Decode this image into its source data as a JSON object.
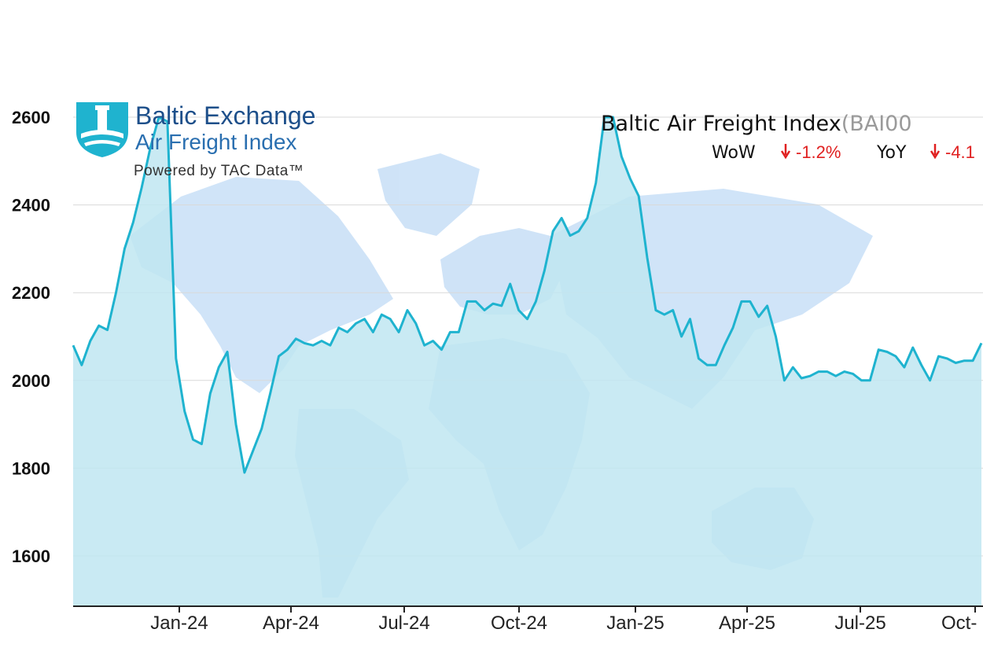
{
  "colors": {
    "line": "#1fb3cf",
    "area": "#c0e6f1",
    "grid": "#d9d9d9",
    "map_land": "#a9cdf2",
    "down_arrow": "#e02020",
    "brand_blue": "#1d4f8a"
  },
  "logo": {
    "name": "Baltic Exchange",
    "product": "Air Freight Index",
    "powered_by": "Powered by TAC Data™",
    "icon": "baltic-exchange-lighthouse-icon"
  },
  "header": {
    "title": "Baltic Air Freight Index",
    "code": "(BAI00",
    "wow_label": "WoW",
    "wow_value": "-1.2%",
    "yoy_label": "YoY",
    "yoy_value": "-4.1",
    "down_icon": "arrow-down-icon"
  },
  "chart_data": {
    "type": "area",
    "title": "Baltic Air Freight Index(BAI00",
    "xlabel": "",
    "ylabel": "",
    "ylim": [
      1490,
      2600
    ],
    "yticks": [
      1600,
      1800,
      2000,
      2200,
      2400,
      2600
    ],
    "xticks": [
      "Jan-24",
      "Apr-24",
      "Jul-24",
      "Oct-24",
      "Jan-25",
      "Apr-25",
      "Jul-25",
      "Oct-"
    ],
    "x_unit": "weeks",
    "grid": true,
    "background": "world-map",
    "series": [
      {
        "values": [
          2080,
          2035,
          2090,
          2125,
          2115,
          2200,
          2300,
          2360,
          2440,
          2530,
          2600,
          2590,
          2050,
          1930,
          1865,
          1855,
          1970,
          2030,
          2065,
          1900,
          1790,
          1840,
          1890,
          1970,
          2055,
          2070,
          2095,
          2085,
          2080,
          2090,
          2080,
          2120,
          2110,
          2130,
          2140,
          2110,
          2150,
          2140,
          2110,
          2160,
          2130,
          2080,
          2090,
          2070,
          2110,
          2110,
          2180,
          2180,
          2160,
          2175,
          2170,
          2220,
          2160,
          2140,
          2180,
          2250,
          2340,
          2370,
          2330,
          2340,
          2370,
          2450,
          2600,
          2600,
          2510,
          2460,
          2420,
          2280,
          2160,
          2150,
          2160,
          2100,
          2140,
          2050,
          2035,
          2035,
          2080,
          2120,
          2180,
          2180,
          2145,
          2170,
          2100,
          2000,
          2030,
          2005,
          2010,
          2020,
          2020,
          2010,
          2020,
          2015,
          2000,
          2000,
          2070,
          2065,
          2055,
          2030,
          2075,
          2035,
          2000,
          2055,
          2050,
          2040,
          2045,
          2045,
          2085
        ]
      }
    ]
  }
}
